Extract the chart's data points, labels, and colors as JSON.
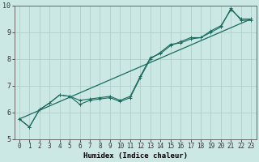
{
  "xlabel": "Humidex (Indice chaleur)",
  "bg_color": "#cce8e5",
  "line_color": "#1a6b5e",
  "grid_color": "#afd0cc",
  "xlim": [
    -0.5,
    23.5
  ],
  "ylim": [
    5.0,
    10.0
  ],
  "yticks": [
    5,
    6,
    7,
    8,
    9,
    10
  ],
  "xticks": [
    0,
    1,
    2,
    3,
    4,
    5,
    6,
    7,
    8,
    9,
    10,
    11,
    12,
    13,
    14,
    15,
    16,
    17,
    18,
    19,
    20,
    21,
    22,
    23
  ],
  "line1_x": [
    0,
    1,
    2,
    3,
    4,
    5,
    6,
    7,
    8,
    9,
    10,
    11,
    12,
    13,
    14,
    15,
    16,
    17,
    18,
    19,
    20,
    21,
    22,
    23
  ],
  "line1_y": [
    5.75,
    5.45,
    6.1,
    6.35,
    6.65,
    6.6,
    6.3,
    6.45,
    6.5,
    6.55,
    6.4,
    6.55,
    7.3,
    8.0,
    8.25,
    8.55,
    8.6,
    8.75,
    8.8,
    9.0,
    9.2,
    9.9,
    9.45,
    9.45
  ],
  "line2_x": [
    0,
    1,
    2,
    3,
    4,
    5,
    6,
    7,
    8,
    9,
    10,
    11,
    12,
    13,
    14,
    15,
    16,
    17,
    18,
    19,
    20,
    21,
    22,
    23
  ],
  "line2_y": [
    5.75,
    5.45,
    6.1,
    6.35,
    6.65,
    6.6,
    6.45,
    6.5,
    6.55,
    6.6,
    6.45,
    6.6,
    7.35,
    8.05,
    8.2,
    8.5,
    8.65,
    8.8,
    8.8,
    9.05,
    9.25,
    9.85,
    9.5,
    9.5
  ],
  "trend_x": [
    0,
    23
  ],
  "trend_y": [
    5.75,
    9.5
  ],
  "xlabel_fontsize": 6.5,
  "tick_fontsize": 5.5
}
